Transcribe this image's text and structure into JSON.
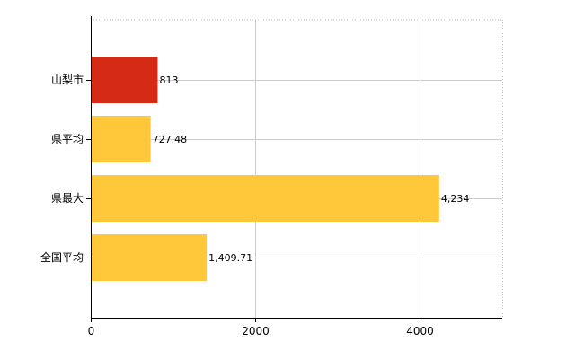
{
  "chart_data": {
    "type": "bar",
    "orientation": "horizontal",
    "categories": [
      "山梨市",
      "県平均",
      "県最大",
      "全国平均"
    ],
    "values": [
      813,
      727.48,
      4234,
      1409.71
    ],
    "value_labels": [
      "813",
      "727.48",
      "4,234",
      "1,409.71"
    ],
    "bar_colors": [
      "#d42a16",
      "#ffc83a",
      "#ffc83a",
      "#ffc83a"
    ],
    "xlim": [
      0,
      5000
    ],
    "x_ticks": [
      0,
      2000,
      4000
    ],
    "x_tick_labels": [
      "0",
      "2000",
      "4000"
    ],
    "grid": true,
    "title": "",
    "xlabel": "",
    "ylabel": ""
  }
}
